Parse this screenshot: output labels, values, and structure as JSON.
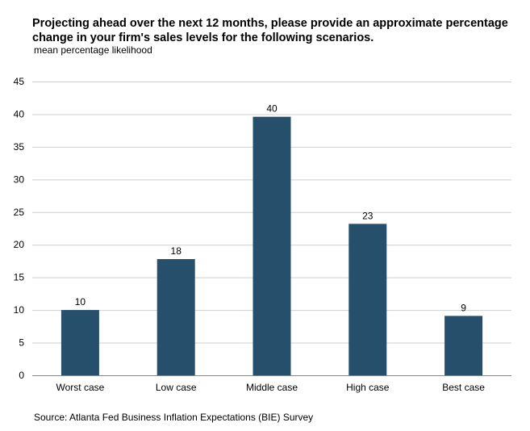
{
  "chart_data": {
    "type": "bar",
    "title": "Projecting ahead over the next 12 months, please provide an approximate percentage change in your firm's sales levels for the following scenarios.",
    "subtitle": "mean percentage  likelihood",
    "categories": [
      "Worst case",
      "Low case",
      "Middle case",
      "High case",
      "Best case"
    ],
    "values": [
      10,
      17.8,
      39.6,
      23.2,
      9.1
    ],
    "data_labels": [
      "10",
      "18",
      "40",
      "23",
      "9"
    ],
    "ylim": [
      0,
      45
    ],
    "yticks": [
      0,
      5,
      10,
      15,
      20,
      25,
      30,
      35,
      40,
      45
    ],
    "xlabel": "",
    "ylabel": "",
    "grid": true,
    "bar_color": "#264f6b",
    "source": "Source: Atlanta Fed Business Inflation Expectations (BIE) Survey"
  }
}
